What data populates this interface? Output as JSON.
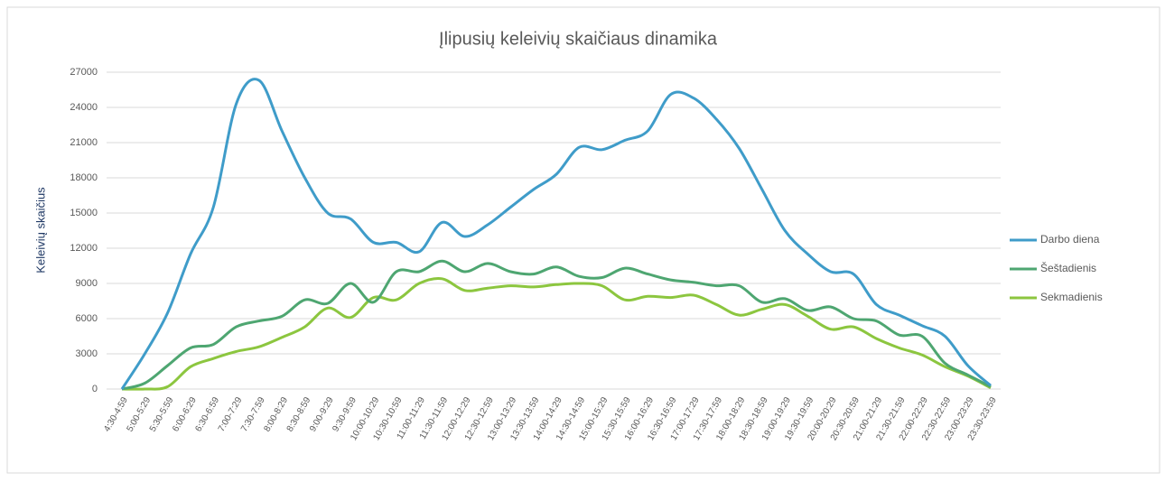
{
  "chart_data": {
    "type": "line",
    "title": "Įlipusių keleivių skaičiaus dinamika",
    "y_label": "Keleivių skaičius",
    "categories": [
      "4:30-4:59",
      "5:00-5:29",
      "5:30-5:59",
      "6:00-6:29",
      "6:30-6:59",
      "7:00-7:29",
      "7:30-7:59",
      "8:00-8:29",
      "8:30-8:59",
      "9:00-9:29",
      "9:30-9:59",
      "10:00-10:29",
      "10:30-10:59",
      "11:00-11:29",
      "11:30-11:59",
      "12:00-12:29",
      "12:30-12:59",
      "13:00-13:29",
      "13:30-13:59",
      "14:00-14:29",
      "14:30-14:59",
      "15:00-15:29",
      "15:30-15:59",
      "16:00-16:29",
      "16:30-16:59",
      "17:00-17:29",
      "17:30-17:59",
      "18:00-18:29",
      "18:30-18:59",
      "19:00-19:29",
      "19:30-19:59",
      "20:00-20:29",
      "20:30-20:59",
      "21:00-21:29",
      "21:30-21:59",
      "22:00-22:29",
      "22:30-22:59",
      "23:00-23:29",
      "23:30-23:59"
    ],
    "series": [
      {
        "name": "Darbo diena",
        "color": "#3f9cc9",
        "values": [
          0,
          3000,
          6500,
          11500,
          15500,
          24300,
          26300,
          22000,
          18000,
          15000,
          14500,
          12500,
          12500,
          11700,
          14200,
          13000,
          14000,
          15500,
          17000,
          18300,
          20600,
          20400,
          21200,
          22000,
          25100,
          24800,
          23000,
          20500,
          17000,
          13500,
          11500,
          10000,
          9800,
          7200,
          6300,
          5400,
          4500,
          2000,
          300
        ]
      },
      {
        "name": "Šeštadienis",
        "color": "#4ea671",
        "values": [
          0,
          500,
          2000,
          3500,
          3800,
          5300,
          5800,
          6200,
          7600,
          7300,
          9000,
          7400,
          10000,
          10000,
          10900,
          10000,
          10700,
          10000,
          9800,
          10400,
          9600,
          9500,
          10300,
          9800,
          9300,
          9100,
          8800,
          8800,
          7400,
          7700,
          6700,
          7000,
          6000,
          5800,
          4600,
          4500,
          2200,
          1200,
          200
        ]
      },
      {
        "name": "Sekmadienis",
        "color": "#8cc63f",
        "values": [
          0,
          0,
          200,
          1900,
          2600,
          3200,
          3600,
          4400,
          5300,
          6900,
          6100,
          7800,
          7600,
          9000,
          9400,
          8400,
          8600,
          8800,
          8700,
          8900,
          9000,
          8800,
          7600,
          7900,
          7800,
          8000,
          7200,
          6300,
          6800,
          7200,
          6200,
          5100,
          5300,
          4300,
          3500,
          2900,
          1900,
          1100,
          100
        ]
      }
    ],
    "ylim": [
      0,
      27000
    ],
    "yticks": [
      0,
      3000,
      6000,
      9000,
      12000,
      15000,
      18000,
      21000,
      24000,
      27000
    ],
    "grid": true,
    "legend": "right"
  }
}
